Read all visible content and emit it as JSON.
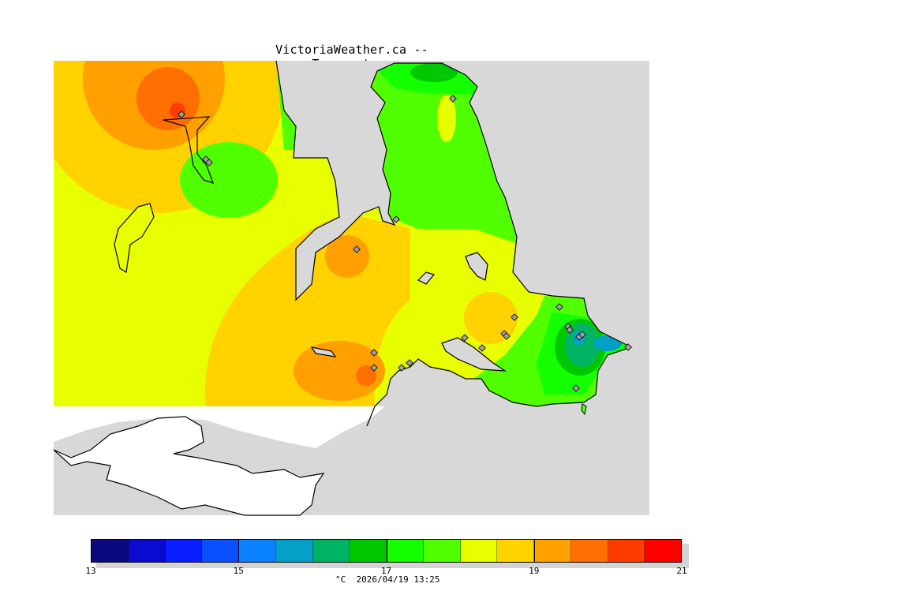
{
  "title": "VictoriaWeather.ca -- Temperature",
  "legend": {
    "unit": "°C",
    "timestamp": "2026/04/19 13:25",
    "ticks": [
      "13",
      "15",
      "17",
      "19",
      "21"
    ],
    "tick_values": [
      13,
      15,
      17,
      19,
      21
    ],
    "range": [
      13,
      21
    ],
    "colors": [
      "#0a0a80",
      "#0a0ad0",
      "#0a1eff",
      "#0a50ff",
      "#0a82ff",
      "#05a0c8",
      "#00b464",
      "#00c800",
      "#14ff00",
      "#50ff00",
      "#e8ff00",
      "#ffd200",
      "#ffa000",
      "#ff6e00",
      "#ff3c00",
      "#ff0000"
    ]
  },
  "map": {
    "colors": {
      "water": "#d8d8d8",
      "outside_domain": "#ffffff",
      "coastline": "#000000",
      "station_marker": "#a0a0a0"
    },
    "station_count": 22
  }
}
